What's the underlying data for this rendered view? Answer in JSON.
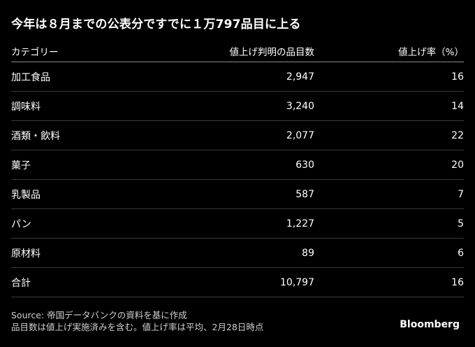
{
  "title": "今年は８月までの公表分ですでに１万797品目に上る",
  "columns": [
    "カテゴリー",
    "値上げ判明の品目数",
    "値上げ率（%）"
  ],
  "rows": [
    {
      "category": "加工食品",
      "items": "2,947",
      "rate": "16"
    },
    {
      "category": "調味料",
      "items": "3,240",
      "rate": "14"
    },
    {
      "category": "酒類・飲料",
      "items": "2,077",
      "rate": "22"
    },
    {
      "category": "菓子",
      "items": "630",
      "rate": "20"
    },
    {
      "category": "乳製品",
      "items": "587",
      "rate": "7"
    },
    {
      "category": "パン",
      "items": "1,227",
      "rate": "5"
    },
    {
      "category": "原材料",
      "items": "89",
      "rate": "6"
    },
    {
      "category": "合計",
      "items": "10,797",
      "rate": "16"
    }
  ],
  "footer": {
    "source": "Source: 帝国データバンクの資料を基に作成",
    "note": "品目数は値上げ実施済みを含む。値上げ率は平均、2月28日時点"
  },
  "brand": "Bloomberg"
}
